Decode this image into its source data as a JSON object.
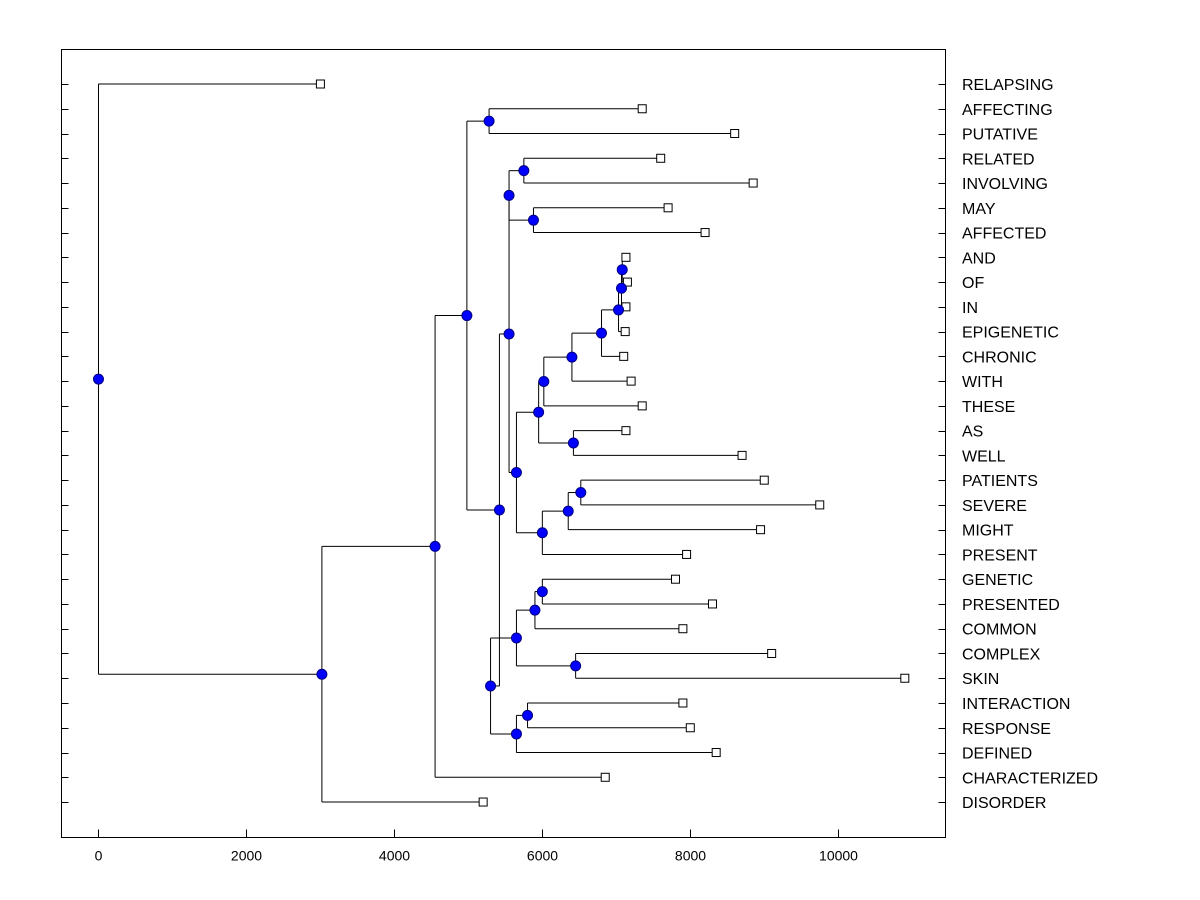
{
  "chart_data": {
    "type": "dendrogram",
    "title": "",
    "xlabel": "",
    "ylabel": "",
    "xlim": [
      -500,
      11450
    ],
    "x_ticks": [
      0,
      2000,
      4000,
      6000,
      8000,
      10000
    ],
    "x_tick_labels": [
      "0",
      "2000",
      "4000",
      "6000",
      "8000",
      "10000"
    ],
    "grid": false,
    "leaves": [
      {
        "label": "RELAPSING",
        "value": 3000
      },
      {
        "label": "AFFECTING",
        "value": 7350
      },
      {
        "label": "PUTATIVE",
        "value": 8600
      },
      {
        "label": "RELATED",
        "value": 7600
      },
      {
        "label": "INVOLVING",
        "value": 8850
      },
      {
        "label": "MAY",
        "value": 7700
      },
      {
        "label": "AFFECTED",
        "value": 8200
      },
      {
        "label": "AND",
        "value": 7130
      },
      {
        "label": "OF",
        "value": 7150
      },
      {
        "label": "IN",
        "value": 7130
      },
      {
        "label": "EPIGENETIC",
        "value": 7120
      },
      {
        "label": "CHRONIC",
        "value": 7100
      },
      {
        "label": "WITH",
        "value": 7200
      },
      {
        "label": "THESE",
        "value": 7350
      },
      {
        "label": "AS",
        "value": 7130
      },
      {
        "label": "WELL",
        "value": 8700
      },
      {
        "label": "PATIENTS",
        "value": 9000
      },
      {
        "label": "SEVERE",
        "value": 9750
      },
      {
        "label": "MIGHT",
        "value": 8950
      },
      {
        "label": "PRESENT",
        "value": 7950
      },
      {
        "label": "GENETIC",
        "value": 7800
      },
      {
        "label": "PRESENTED",
        "value": 8300
      },
      {
        "label": "COMMON",
        "value": 7900
      },
      {
        "label": "COMPLEX",
        "value": 9100
      },
      {
        "label": "SKIN",
        "value": 10900
      },
      {
        "label": "INTERACTION",
        "value": 7900
      },
      {
        "label": "RESPONSE",
        "value": 8000
      },
      {
        "label": "DEFINED",
        "value": 8350
      },
      {
        "label": "CHARACTERIZED",
        "value": 6850
      },
      {
        "label": "DISORDER",
        "value": 5200
      }
    ],
    "nodes": [
      {
        "value": 7080,
        "children": [
          7,
          8
        ]
      },
      {
        "value": 7070,
        "children": [
          "N0",
          9
        ]
      },
      {
        "value": 7030,
        "children": [
          "N1",
          10
        ]
      },
      {
        "value": 6800,
        "children": [
          "N2",
          11
        ]
      },
      {
        "value": 6400,
        "children": [
          "N3",
          12
        ]
      },
      {
        "value": 6020,
        "children": [
          "N4",
          13
        ]
      },
      {
        "value": 6420,
        "children": [
          14,
          15
        ]
      },
      {
        "value": 5950,
        "children": [
          "N5",
          "N6"
        ]
      },
      {
        "value": 6520,
        "children": [
          16,
          17
        ]
      },
      {
        "value": 6350,
        "children": [
          "N8",
          18
        ]
      },
      {
        "value": 6000,
        "children": [
          "N9",
          19
        ]
      },
      {
        "value": 5650,
        "children": [
          "N7",
          "N10"
        ]
      },
      {
        "value": 5750,
        "children": [
          3,
          4
        ]
      },
      {
        "value": 5880,
        "children": [
          5,
          6
        ]
      },
      {
        "value": 5550,
        "children": [
          "N12",
          "N13"
        ]
      },
      {
        "value": 5280,
        "children": [
          1,
          2
        ]
      },
      {
        "value": 5550,
        "children": [
          "N14",
          "N11"
        ]
      },
      {
        "value": 6000,
        "children": [
          20,
          21
        ]
      },
      {
        "value": 5900,
        "children": [
          "N17",
          22
        ]
      },
      {
        "value": 6450,
        "children": [
          23,
          24
        ]
      },
      {
        "value": 5650,
        "children": [
          "N18",
          "N19"
        ]
      },
      {
        "value": 5800,
        "children": [
          25,
          26
        ]
      },
      {
        "value": 5650,
        "children": [
          "N21",
          27
        ]
      },
      {
        "value": 5300,
        "children": [
          "N20",
          "N22"
        ]
      },
      {
        "value": 5420,
        "children": [
          "N16",
          "N23"
        ]
      },
      {
        "value": 4980,
        "children": [
          "N15",
          "N24"
        ]
      },
      {
        "value": 4550,
        "children": [
          "N25",
          28
        ]
      },
      {
        "value": 3020,
        "children": [
          "N26",
          29
        ]
      },
      {
        "value": 0,
        "children": [
          0,
          "N27"
        ]
      }
    ],
    "colors": {
      "line": "#000000",
      "node_fill": "#0000ff",
      "node_stroke": "#000080",
      "leaf_marker_fill": "#ffffff",
      "leaf_marker_stroke": "#000000"
    }
  }
}
